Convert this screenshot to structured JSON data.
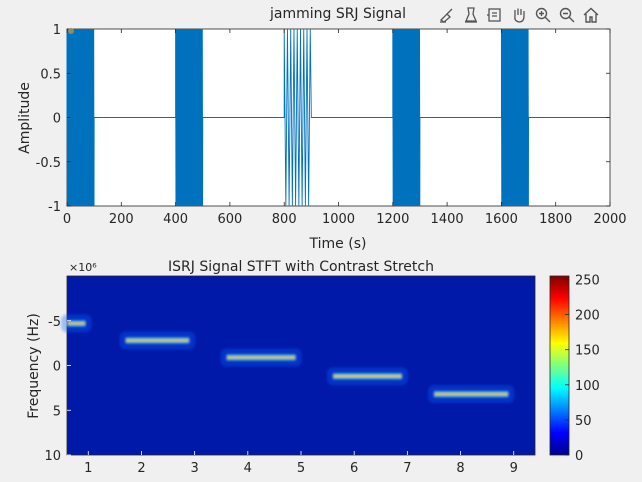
{
  "toolbar": {
    "icons": [
      "brush-icon",
      "data-tips-icon",
      "pan-icon",
      "hand-pan-icon",
      "zoom-in-icon",
      "zoom-out-icon",
      "home-icon"
    ]
  },
  "colors": {
    "figure_bg": "#f0f0f0",
    "signal_line": "#0072bd",
    "axes_text": "#262626"
  },
  "chart_data": [
    {
      "type": "line",
      "title": "jamming SRJ Signal",
      "xlabel": "Time (s)",
      "ylabel": "Amplitude",
      "xlim": [
        0,
        2000
      ],
      "ylim": [
        -1,
        1
      ],
      "xticks": [
        "0",
        "200",
        "400",
        "600",
        "800",
        "1000",
        "1200",
        "1400",
        "1600",
        "1800",
        "2000"
      ],
      "yticks": [
        "-1",
        "-0.5",
        "0",
        "0.5",
        "1"
      ],
      "bursts": [
        [
          0,
          100
        ],
        [
          400,
          500
        ],
        [
          800,
          900
        ],
        [
          1200,
          1300
        ],
        [
          1600,
          1700
        ]
      ],
      "burst_amplitude": 1,
      "gap_amplitude": 0,
      "grid": false
    },
    {
      "type": "heatmap",
      "title": "ISRJ Signal STFT with Contrast Stretch",
      "xlabel": "",
      "ylabel": "Frequency (Hz)",
      "y_exponent": "×10⁶",
      "xlim": [
        0.6,
        9.4
      ],
      "ylim": [
        -10,
        10
      ],
      "xticks": [
        "1",
        "2",
        "3",
        "4",
        "5",
        "6",
        "7",
        "8",
        "9"
      ],
      "yticks": [
        "-5",
        "0",
        "5",
        "10"
      ],
      "colorbar": {
        "range": [
          0,
          255
        ],
        "ticks": [
          "0",
          "50",
          "100",
          "150",
          "200",
          "250"
        ]
      },
      "stripes": [
        {
          "x": [
            0.6,
            0.95
          ],
          "y": -4.7,
          "peak": 180
        },
        {
          "x": [
            1.7,
            2.9
          ],
          "y": -2.8,
          "peak": 255
        },
        {
          "x": [
            3.6,
            4.9
          ],
          "y": -0.9,
          "peak": 255
        },
        {
          "x": [
            5.6,
            6.9
          ],
          "y": 1.2,
          "peak": 255
        },
        {
          "x": [
            7.5,
            8.9
          ],
          "y": 3.2,
          "peak": 255
        }
      ]
    }
  ]
}
